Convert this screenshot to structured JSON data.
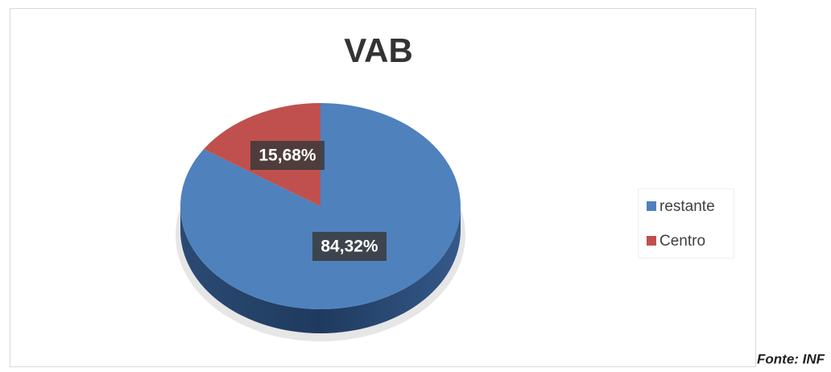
{
  "chart_data": {
    "type": "pie",
    "title": "VAB",
    "categories": [
      "restante",
      "Centro"
    ],
    "values": [
      84.32,
      15.68
    ],
    "value_labels": [
      "84,32%",
      "15,68%"
    ],
    "colors": [
      "#4f81bd",
      "#c0504d"
    ],
    "legend": "right",
    "source": "Fonte: INF"
  }
}
